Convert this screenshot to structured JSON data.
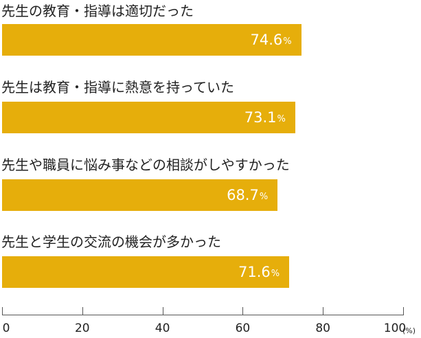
{
  "chart_data": {
    "type": "bar",
    "orientation": "horizontal",
    "categories": [
      "先生の教育・指導は適切だった",
      "先生は教育・指導に熱意を持っていた",
      "先生や職員に悩み事などの相談がしやすかった",
      "先生と学生の交流の機会が多かった"
    ],
    "values": [
      74.6,
      73.1,
      68.7,
      71.6
    ],
    "value_labels": [
      "74.6",
      "73.1",
      "68.7",
      "71.6"
    ],
    "value_suffix": "%",
    "xlim": [
      0,
      100
    ],
    "xticks": [
      0,
      20,
      40,
      60,
      80,
      100
    ],
    "xtick_labels": [
      "0",
      "20",
      "40",
      "60",
      "80",
      "100"
    ],
    "unit": "(%)",
    "bar_color": "#E6AE0B",
    "grid": false,
    "legend": "none"
  }
}
